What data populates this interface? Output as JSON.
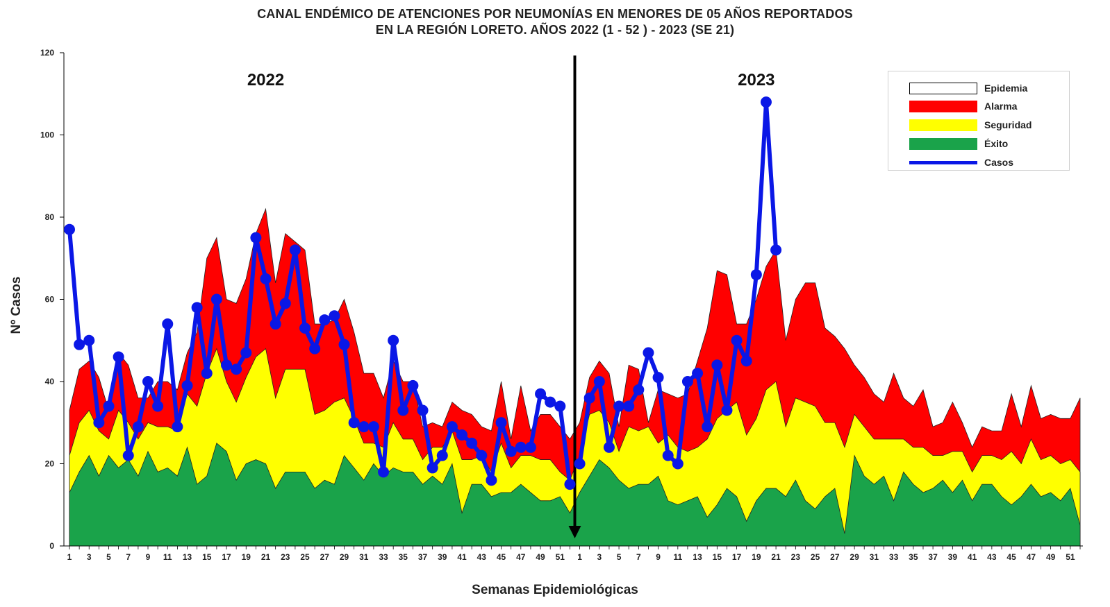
{
  "chart_data": {
    "type": "area",
    "title_line1": "CANAL ENDÉMICO DE ATENCIONES POR NEUMONÍAS EN MENORES DE 05 AÑOS REPORTADOS",
    "title_line2": "EN LA REGIÓN LORETO. AÑOS 2022 (1 - 52 ) - 2023 (SE 21)",
    "xlabel": "Semanas Epidemiológicas",
    "ylabel": "Nº Casos",
    "ylim": [
      0,
      120
    ],
    "yticks": [
      0,
      20,
      40,
      60,
      80,
      100,
      120
    ],
    "year_labels": [
      "2022",
      "2023"
    ],
    "weeks_2022": 52,
    "weeks_2023": 52,
    "x_tick_labels_2022": [
      "1",
      "3",
      "5",
      "7",
      "9",
      "11",
      "13",
      "15",
      "17",
      "19",
      "21",
      "23",
      "25",
      "27",
      "29",
      "31",
      "33",
      "35",
      "37",
      "39",
      "41",
      "43",
      "45",
      "47",
      "49",
      "51"
    ],
    "x_tick_labels_2023": [
      "1",
      "3",
      "5",
      "7",
      "9",
      "11",
      "13",
      "15",
      "17",
      "19",
      "21",
      "23",
      "25",
      "27",
      "29",
      "31",
      "33",
      "35",
      "37",
      "39",
      "41",
      "43",
      "45",
      "47",
      "49",
      "51"
    ],
    "legend": [
      "Epidemia",
      "Alarma",
      "Seguridad",
      "Éxito",
      "Casos"
    ],
    "colors": {
      "epidemia": "#ffffff",
      "alarma": "#ff0000",
      "seguridad": "#ffff00",
      "exito": "#1aa34a",
      "casos": "#0a17e6"
    },
    "exito_2022": [
      13,
      18,
      22,
      17,
      22,
      19,
      21,
      17,
      23,
      18,
      19,
      17,
      24,
      15,
      17,
      25,
      23,
      16,
      20,
      21,
      20,
      14,
      18,
      18,
      18,
      14,
      16,
      15,
      22,
      19,
      16,
      20,
      17,
      19,
      18,
      18,
      15,
      17,
      15,
      20,
      8,
      15,
      15,
      12,
      13,
      13,
      15,
      13,
      11,
      11,
      12,
      8
    ],
    "seguridad_2022": [
      22,
      30,
      33,
      28,
      26,
      33,
      30,
      26,
      30,
      29,
      29,
      28,
      37,
      34,
      42,
      48,
      40,
      35,
      41,
      46,
      48,
      36,
      43,
      43,
      43,
      32,
      33,
      35,
      36,
      31,
      25,
      25,
      24,
      30,
      26,
      26,
      21,
      24,
      24,
      28,
      21,
      21,
      22,
      18,
      25,
      19,
      22,
      22,
      21,
      21,
      18,
      16
    ],
    "alarma_2022": [
      33,
      43,
      45,
      41,
      33,
      47,
      44,
      36,
      36,
      40,
      40,
      38,
      47,
      52,
      70,
      75,
      60,
      59,
      65,
      76,
      82,
      64,
      76,
      74,
      72,
      54,
      54,
      55,
      60,
      52,
      42,
      42,
      36,
      45,
      40,
      40,
      29,
      30,
      29,
      35,
      33,
      32,
      29,
      28,
      40,
      26,
      39,
      28,
      32,
      32,
      29,
      26
    ],
    "exito_2023": [
      13,
      17,
      21,
      19,
      16,
      14,
      15,
      15,
      17,
      11,
      10,
      11,
      12,
      7,
      10,
      14,
      12,
      6,
      11,
      14,
      14,
      12,
      16,
      11,
      9,
      12,
      14,
      3,
      22,
      17,
      15,
      17,
      11,
      18,
      15,
      13,
      14,
      16,
      13,
      16,
      11,
      15,
      15,
      12,
      10,
      12,
      15,
      12,
      13,
      11,
      14,
      5
    ],
    "seguridad_2023": [
      22,
      32,
      33,
      30,
      23,
      29,
      28,
      29,
      25,
      27,
      24,
      23,
      24,
      26,
      31,
      33,
      35,
      27,
      31,
      38,
      40,
      29,
      36,
      35,
      34,
      30,
      30,
      24,
      32,
      29,
      26,
      26,
      26,
      26,
      24,
      24,
      22,
      22,
      23,
      23,
      18,
      22,
      22,
      21,
      23,
      20,
      26,
      21,
      22,
      20,
      21,
      18
    ],
    "alarma_2023": [
      30,
      41,
      45,
      42,
      29,
      44,
      43,
      30,
      38,
      37,
      36,
      37,
      45,
      53,
      67,
      66,
      54,
      54,
      60,
      68,
      72,
      50,
      60,
      64,
      64,
      53,
      51,
      48,
      44,
      41,
      37,
      35,
      42,
      36,
      34,
      38,
      29,
      30,
      35,
      30,
      24,
      29,
      28,
      28,
      37,
      29,
      39,
      31,
      32,
      31,
      31,
      36
    ],
    "casos_2022": [
      77,
      49,
      50,
      30,
      34,
      46,
      22,
      29,
      40,
      34,
      54,
      29,
      39,
      58,
      42,
      60,
      44,
      43,
      47,
      75,
      65,
      54,
      59,
      72,
      53,
      48,
      55,
      56,
      49,
      30,
      29,
      29,
      18,
      50,
      33,
      39,
      33,
      19,
      22,
      29,
      27,
      25,
      22,
      16,
      30,
      23,
      24,
      24,
      37,
      35,
      34,
      15
    ],
    "casos_2023": [
      20,
      36,
      40,
      24,
      34,
      34,
      38,
      47,
      41,
      22,
      20,
      40,
      42,
      29,
      44,
      33,
      50,
      45,
      66,
      108,
      72
    ]
  }
}
